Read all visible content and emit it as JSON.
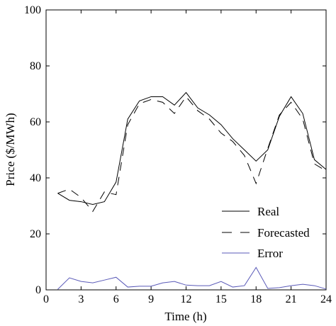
{
  "chart_data": {
    "type": "line",
    "xlabel": "Time (h)",
    "ylabel": "Price ($/MWh)",
    "xlim": [
      0,
      24
    ],
    "ylim": [
      0,
      100
    ],
    "xticks": [
      0,
      3,
      6,
      9,
      12,
      15,
      18,
      21,
      24
    ],
    "yticks": [
      0,
      20,
      40,
      60,
      80,
      100
    ],
    "grid": false,
    "legend_position": "bottom-right",
    "x": [
      1,
      2,
      3,
      4,
      5,
      6,
      7,
      8,
      9,
      10,
      11,
      12,
      13,
      14,
      15,
      16,
      17,
      18,
      19,
      20,
      21,
      22,
      23,
      24
    ],
    "series": [
      {
        "name": "Real",
        "color": "#000000",
        "dash": "solid",
        "values": [
          34.5,
          32.0,
          31.5,
          30.5,
          31.5,
          38.5,
          61.0,
          67.5,
          69.0,
          69.0,
          66.0,
          70.5,
          65.0,
          62.5,
          59.0,
          54.0,
          50.0,
          46.0,
          50.0,
          62.0,
          69.0,
          63.0,
          46.5,
          43.0
        ]
      },
      {
        "name": "Forecasted",
        "color": "#000000",
        "dash": "long-dash",
        "values": [
          34.5,
          36.0,
          33.0,
          28.0,
          35.0,
          34.0,
          59.0,
          66.5,
          68.0,
          67.0,
          63.0,
          69.0,
          64.0,
          61.0,
          56.0,
          53.0,
          48.0,
          38.0,
          50.5,
          62.5,
          67.0,
          61.0,
          45.0,
          42.5
        ]
      },
      {
        "name": "Error",
        "color": "#5a5ab8",
        "dash": "solid",
        "values": [
          0.2,
          4.3,
          3.0,
          2.5,
          3.5,
          4.5,
          1.0,
          1.3,
          1.3,
          2.5,
          3.0,
          1.7,
          1.5,
          1.5,
          3.0,
          1.0,
          1.5,
          8.0,
          0.5,
          0.8,
          1.5,
          2.0,
          1.5,
          0.3
        ]
      }
    ]
  }
}
